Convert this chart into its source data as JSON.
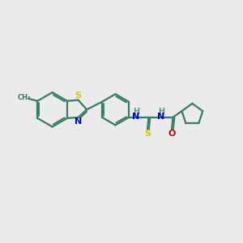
{
  "background_color": "#ebebeb",
  "bond_color": "#3a7a6a",
  "S_color": "#cccc00",
  "N_color": "#0000cc",
  "O_color": "#cc0000",
  "H_color": "#5a9a8a",
  "figsize": [
    3.0,
    3.0
  ],
  "dpi": 100,
  "xlim": [
    0,
    10
  ],
  "ylim": [
    0,
    10
  ]
}
